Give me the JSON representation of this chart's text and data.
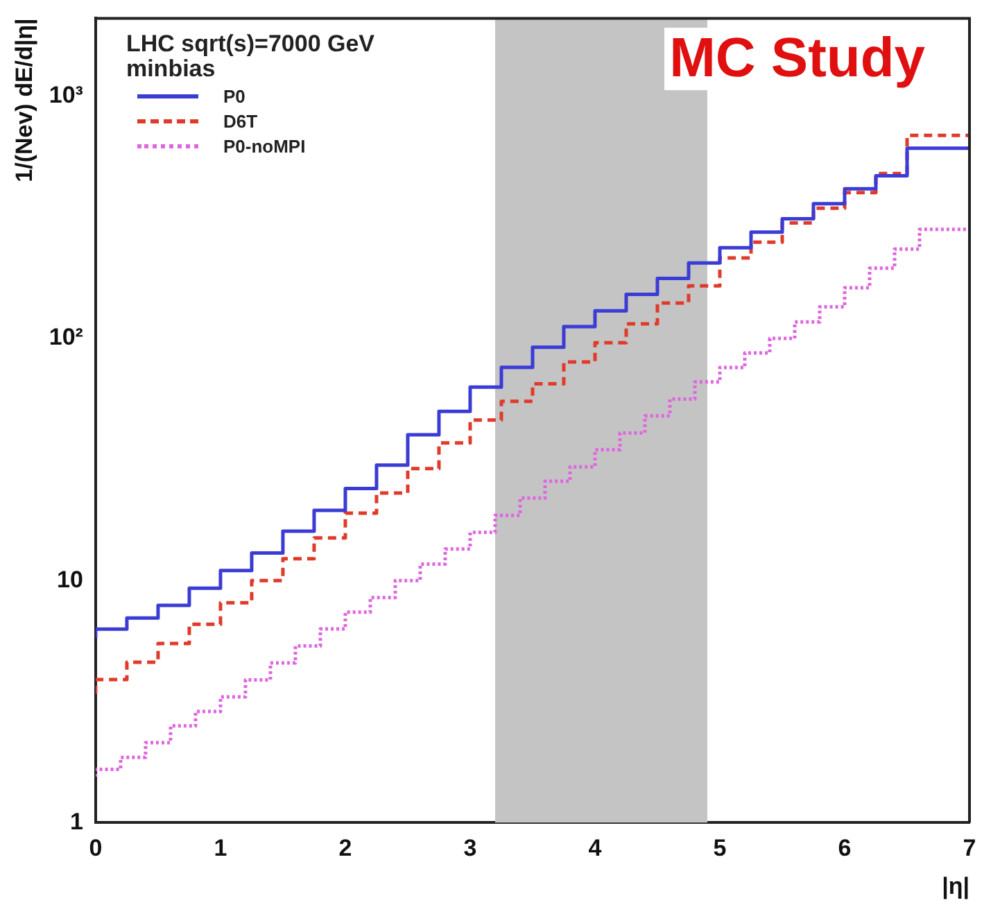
{
  "chart_data": {
    "type": "step",
    "title": "MC Study",
    "xlabel": "|η|",
    "ylabel": "1/(Nev) dE/d|η|",
    "legend_title": "LHC sqrt(s)=7000 GeV\nminbias",
    "legend": "top left",
    "log": "y",
    "grid": false,
    "marker": "none",
    "xlim": [
      0,
      7
    ],
    "xticks": [
      0,
      1,
      2,
      3,
      4,
      5,
      6,
      7
    ],
    "ylim": [
      1,
      2100
    ],
    "yticks": [
      1,
      10,
      {
        "value": 100,
        "label": "10²"
      },
      {
        "value": 1000,
        "label": "10³"
      }
    ],
    "bands": [
      {
        "axis": "x",
        "from": 3.2,
        "to": 4.9,
        "color": "#c4c4c4"
      }
    ],
    "series": [
      {
        "name": "P0",
        "color": "#3b3bd6",
        "line_style": "solid",
        "x": [
          0,
          0.25,
          0.5,
          0.75,
          1,
          1.25,
          1.5,
          1.75,
          2,
          2.25,
          2.5,
          2.75,
          3,
          3.25,
          3.5,
          3.75,
          4,
          4.25,
          4.5,
          4.75,
          5,
          5.25,
          5.5,
          5.75,
          6,
          6.25,
          6.5,
          6.75,
          7
        ],
        "values": [
          5.8,
          6.3,
          7.0,
          7.9,
          9.3,
          11,
          13,
          16,
          19.5,
          24,
          30,
          40,
          50,
          63,
          76,
          92,
          112,
          130,
          152,
          177,
          205,
          237,
          275,
          312,
          360,
          415,
          470,
          610,
          610
        ]
      },
      {
        "name": "D6T",
        "color": "#e03a2a",
        "line_style": "dashed",
        "x": [
          0,
          0.25,
          0.5,
          0.75,
          1,
          1.25,
          1.5,
          1.75,
          2,
          2.25,
          2.5,
          2.75,
          3,
          3.25,
          3.5,
          3.75,
          4,
          4.25,
          4.5,
          4.75,
          5,
          5.25,
          5.5,
          5.75,
          6,
          6.25,
          6.5,
          6.75,
          7
        ],
        "values": [
          3.4,
          3.9,
          4.6,
          5.5,
          6.6,
          8.1,
          10,
          12.3,
          15,
          19,
          23,
          29,
          37,
          46,
          55,
          65,
          80,
          96,
          115,
          140,
          165,
          215,
          250,
          300,
          345,
          400,
          480,
          690,
          690
        ]
      },
      {
        "name": "P0-noMPI",
        "color": "#e066e0",
        "line_style": "dotted",
        "x": [
          0,
          0.2,
          0.4,
          0.6,
          0.8,
          1,
          1.2,
          1.4,
          1.6,
          1.8,
          2,
          2.2,
          2.4,
          2.6,
          2.8,
          3,
          3.2,
          3.4,
          3.6,
          3.8,
          4,
          4.2,
          4.4,
          4.6,
          4.8,
          5,
          5.2,
          5.4,
          5.6,
          5.8,
          6,
          6.2,
          6.4,
          6.6,
          6.8,
          7
        ],
        "values": [
          1.55,
          1.66,
          1.86,
          2.14,
          2.51,
          2.88,
          3.31,
          3.89,
          4.57,
          5.37,
          6.31,
          7.41,
          8.51,
          10,
          11.7,
          13.5,
          15.8,
          18.6,
          21.9,
          25.7,
          29.5,
          34.7,
          40.7,
          47.9,
          56.2,
          66.1,
          75.9,
          87.1,
          100,
          117,
          135,
          162,
          195,
          234,
          282,
          282
        ]
      }
    ]
  }
}
